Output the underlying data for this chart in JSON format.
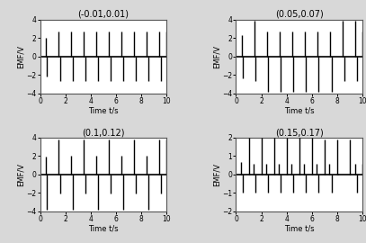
{
  "subplots": [
    {
      "title": "(-0.01,0.01)",
      "ylim": [
        -4,
        4
      ],
      "yticks": [
        -4,
        -2,
        0,
        2,
        4
      ],
      "spikes": [
        [
          0.45,
          2.0
        ],
        [
          0.55,
          -2.2
        ],
        [
          1.45,
          2.7
        ],
        [
          1.55,
          -2.7
        ],
        [
          2.45,
          2.7
        ],
        [
          2.55,
          -2.7
        ],
        [
          3.45,
          2.7
        ],
        [
          3.55,
          -2.7
        ],
        [
          4.45,
          2.7
        ],
        [
          4.55,
          -2.7
        ],
        [
          5.45,
          2.7
        ],
        [
          5.55,
          -2.7
        ],
        [
          6.45,
          2.7
        ],
        [
          6.55,
          -2.7
        ],
        [
          7.45,
          2.7
        ],
        [
          7.55,
          -2.7
        ],
        [
          8.45,
          2.7
        ],
        [
          8.55,
          -2.7
        ],
        [
          9.45,
          2.7
        ],
        [
          9.55,
          -2.7
        ],
        [
          10.0,
          2.7
        ]
      ]
    },
    {
      "title": "(0.05,0.07)",
      "ylim": [
        -4,
        4
      ],
      "yticks": [
        -4,
        -2,
        0,
        2,
        4
      ],
      "spikes": [
        [
          0.45,
          2.3
        ],
        [
          0.55,
          -2.4
        ],
        [
          1.45,
          3.85
        ],
        [
          1.55,
          -2.7
        ],
        [
          2.45,
          2.7
        ],
        [
          2.55,
          -3.8
        ],
        [
          3.45,
          2.7
        ],
        [
          3.55,
          -3.8
        ],
        [
          4.45,
          2.7
        ],
        [
          4.55,
          -3.8
        ],
        [
          5.45,
          2.7
        ],
        [
          5.55,
          -3.8
        ],
        [
          6.45,
          2.7
        ],
        [
          6.55,
          -3.8
        ],
        [
          7.45,
          2.7
        ],
        [
          7.55,
          -3.8
        ],
        [
          8.45,
          3.85
        ],
        [
          8.55,
          -2.7
        ],
        [
          9.45,
          3.85
        ],
        [
          9.55,
          -2.7
        ],
        [
          10.0,
          2.7
        ]
      ]
    },
    {
      "title": "(0.1,0.12)",
      "ylim": [
        -4,
        4
      ],
      "yticks": [
        -4,
        -2,
        0,
        2,
        4
      ],
      "spikes": [
        [
          0.45,
          1.9
        ],
        [
          0.55,
          -3.85
        ],
        [
          1.45,
          3.75
        ],
        [
          1.55,
          -2.1
        ],
        [
          2.45,
          2.0
        ],
        [
          2.55,
          -3.85
        ],
        [
          3.45,
          3.75
        ],
        [
          3.55,
          -2.1
        ],
        [
          4.45,
          2.0
        ],
        [
          4.55,
          -3.85
        ],
        [
          5.45,
          3.75
        ],
        [
          5.55,
          -2.1
        ],
        [
          6.45,
          2.0
        ],
        [
          6.55,
          -3.85
        ],
        [
          7.45,
          3.75
        ],
        [
          7.55,
          -2.1
        ],
        [
          8.45,
          2.0
        ],
        [
          8.55,
          -3.85
        ],
        [
          9.45,
          3.75
        ],
        [
          9.55,
          -2.1
        ],
        [
          10.0,
          3.75
        ]
      ]
    },
    {
      "title": "(0.15,0.17)",
      "ylim": [
        -2,
        2
      ],
      "yticks": [
        -2,
        -1,
        0,
        1,
        2
      ],
      "spikes": [
        [
          0.4,
          0.7
        ],
        [
          0.55,
          -1.0
        ],
        [
          1.0,
          2.0
        ],
        [
          1.4,
          0.6
        ],
        [
          1.55,
          -1.0
        ],
        [
          2.0,
          2.0
        ],
        [
          2.4,
          0.6
        ],
        [
          2.55,
          -1.0
        ],
        [
          3.0,
          2.0
        ],
        [
          3.4,
          0.6
        ],
        [
          3.55,
          -1.0
        ],
        [
          4.0,
          2.0
        ],
        [
          4.4,
          0.6
        ],
        [
          4.55,
          -1.0
        ],
        [
          5.0,
          2.0
        ],
        [
          5.4,
          0.6
        ],
        [
          5.55,
          -1.0
        ],
        [
          6.0,
          2.0
        ],
        [
          6.4,
          0.6
        ],
        [
          6.55,
          -1.0
        ],
        [
          7.0,
          1.9
        ],
        [
          7.4,
          0.6
        ],
        [
          7.55,
          -1.0
        ],
        [
          8.0,
          1.9
        ],
        [
          8.1,
          0.05
        ],
        [
          9.0,
          1.9
        ],
        [
          9.4,
          0.6
        ],
        [
          9.55,
          -1.0
        ],
        [
          10.0,
          0.6
        ]
      ]
    }
  ],
  "xlim": [
    0,
    10
  ],
  "xticks": [
    0,
    2,
    4,
    6,
    8,
    10
  ],
  "xlabel": "Time t/s",
  "ylabel": "EMF/V",
  "bg_color": "#d8d8d8",
  "axes_bg_color": "#ffffff",
  "spike_color": "#000000",
  "spike_linewidth": 1.0,
  "zero_linewidth": 1.2,
  "title_fontsize": 7.0,
  "tick_fontsize": 5.5,
  "label_fontsize": 6.0
}
